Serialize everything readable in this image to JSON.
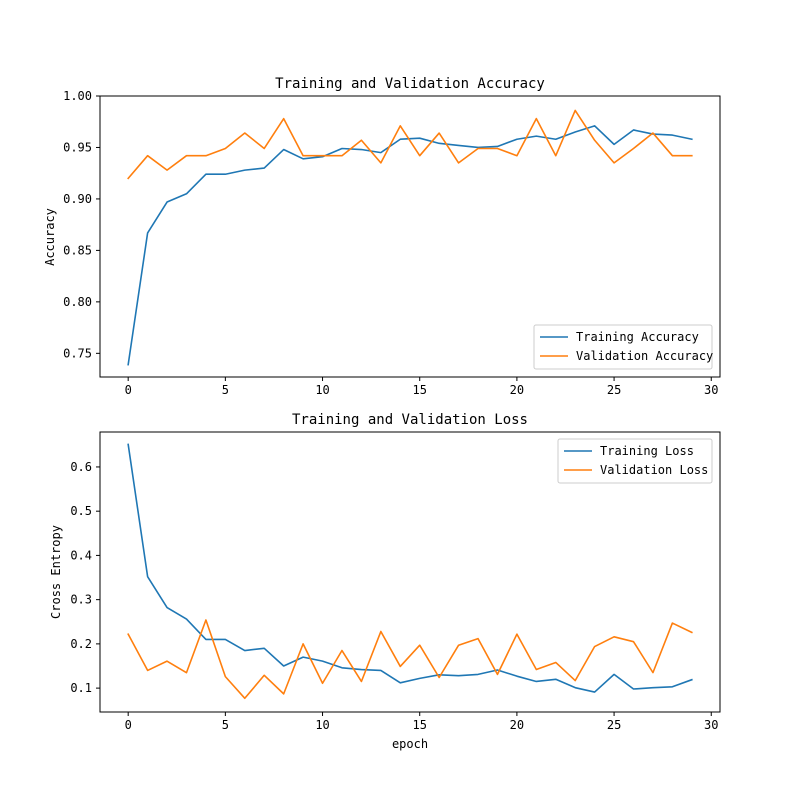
{
  "chart_data": [
    {
      "type": "line",
      "title": "Training and Validation Accuracy",
      "xlabel": "",
      "ylabel": "Accuracy",
      "xlim": [
        -1.45,
        30.45
      ],
      "ylim": [
        0.727,
        1.0
      ],
      "xticks": [
        0,
        5,
        10,
        15,
        20,
        25,
        30
      ],
      "xtick_labels": [
        "0",
        "5",
        "10",
        "15",
        "20",
        "25",
        "30"
      ],
      "yticks": [
        0.75,
        0.8,
        0.85,
        0.9,
        0.95,
        1.0
      ],
      "ytick_labels": [
        "0.75",
        "0.80",
        "0.85",
        "0.90",
        "0.95",
        "1.00"
      ],
      "grid": false,
      "legend_position": "lower-right",
      "x": [
        0,
        1,
        2,
        3,
        4,
        5,
        6,
        7,
        8,
        9,
        10,
        11,
        12,
        13,
        14,
        15,
        16,
        17,
        18,
        19,
        20,
        21,
        22,
        23,
        24,
        25,
        26,
        27,
        28,
        29
      ],
      "series": [
        {
          "name": "Training Accuracy",
          "color": "#1f77b4",
          "values": [
            0.739,
            0.867,
            0.897,
            0.905,
            0.924,
            0.924,
            0.928,
            0.93,
            0.948,
            0.939,
            0.941,
            0.949,
            0.948,
            0.945,
            0.958,
            0.959,
            0.954,
            0.952,
            0.95,
            0.951,
            0.958,
            0.961,
            0.958,
            0.965,
            0.971,
            0.953,
            0.967,
            0.963,
            0.962,
            0.958
          ]
        },
        {
          "name": "Validation Accuracy",
          "color": "#ff7f0e",
          "values": [
            0.92,
            0.942,
            0.928,
            0.942,
            0.942,
            0.949,
            0.964,
            0.949,
            0.978,
            0.942,
            0.942,
            0.942,
            0.957,
            0.935,
            0.971,
            0.942,
            0.964,
            0.935,
            0.949,
            0.949,
            0.942,
            0.978,
            0.942,
            0.986,
            0.957,
            0.935,
            0.949,
            0.964,
            0.942,
            0.942
          ]
        }
      ]
    },
    {
      "type": "line",
      "title": "Training and Validation Loss",
      "xlabel": "epoch",
      "ylabel": "Cross Entropy",
      "xlim": [
        -1.45,
        30.45
      ],
      "ylim": [
        0.046,
        0.679
      ],
      "xticks": [
        0,
        5,
        10,
        15,
        20,
        25,
        30
      ],
      "xtick_labels": [
        "0",
        "5",
        "10",
        "15",
        "20",
        "25",
        "30"
      ],
      "yticks": [
        0.1,
        0.2,
        0.3,
        0.4,
        0.5,
        0.6
      ],
      "ytick_labels": [
        "0.1",
        "0.2",
        "0.3",
        "0.4",
        "0.5",
        "0.6"
      ],
      "grid": false,
      "legend_position": "upper-right",
      "x": [
        0,
        1,
        2,
        3,
        4,
        5,
        6,
        7,
        8,
        9,
        10,
        11,
        12,
        13,
        14,
        15,
        16,
        17,
        18,
        19,
        20,
        21,
        22,
        23,
        24,
        25,
        26,
        27,
        28,
        29
      ],
      "series": [
        {
          "name": "Training Loss",
          "color": "#1f77b4",
          "values": [
            0.651,
            0.352,
            0.282,
            0.256,
            0.21,
            0.21,
            0.185,
            0.19,
            0.15,
            0.17,
            0.161,
            0.146,
            0.142,
            0.14,
            0.112,
            0.122,
            0.13,
            0.128,
            0.131,
            0.141,
            0.127,
            0.115,
            0.12,
            0.101,
            0.091,
            0.131,
            0.098,
            0.101,
            0.103,
            0.119
          ]
        },
        {
          "name": "Validation Loss",
          "color": "#ff7f0e",
          "values": [
            0.222,
            0.14,
            0.161,
            0.135,
            0.254,
            0.126,
            0.077,
            0.129,
            0.087,
            0.2,
            0.111,
            0.185,
            0.115,
            0.228,
            0.149,
            0.197,
            0.124,
            0.197,
            0.212,
            0.131,
            0.222,
            0.142,
            0.158,
            0.117,
            0.194,
            0.216,
            0.205,
            0.135,
            0.247,
            0.226
          ]
        }
      ]
    }
  ]
}
